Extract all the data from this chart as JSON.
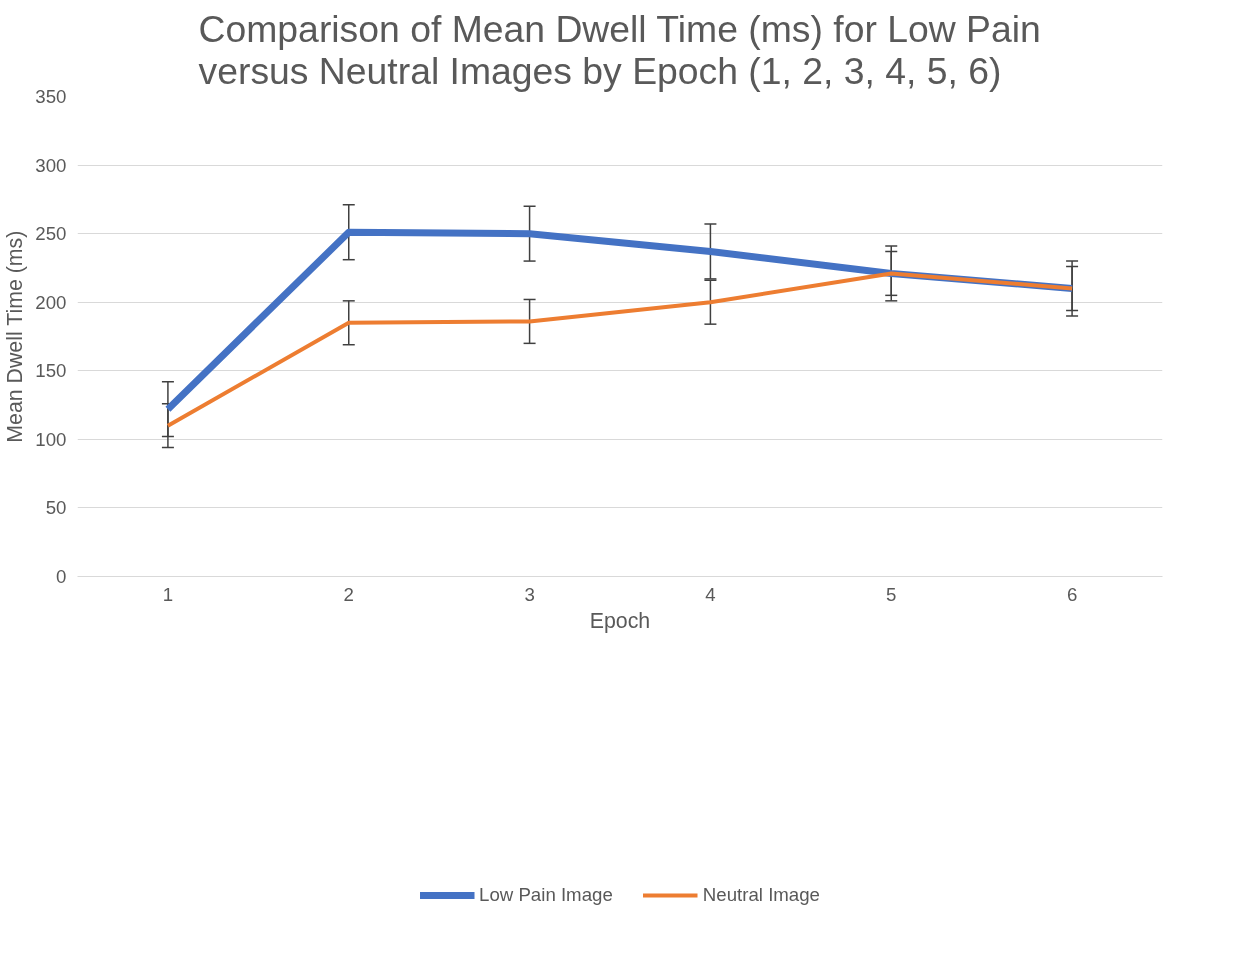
{
  "chart_data": {
    "type": "line",
    "title": "Comparison of Mean Dwell Time (ms) for Low Pain versus Neutral Images by Epoch (1, 2, 3, 4, 5, 6)",
    "xlabel": "Epoch",
    "ylabel": "Mean Dwell Time (ms)",
    "categories": [
      "1",
      "2",
      "3",
      "4",
      "5",
      "6"
    ],
    "series": [
      {
        "name": "Low Pain Image",
        "color": "#4472c4",
        "values": [
          122,
          251,
          250,
          237,
          221,
          210
        ],
        "errors": [
          20,
          20,
          20,
          20,
          20,
          20
        ]
      },
      {
        "name": "Neutral Image",
        "color": "#ed7d31",
        "values": [
          110,
          185,
          186,
          200,
          221,
          210
        ],
        "errors": [
          16,
          16,
          16,
          16,
          16,
          16
        ]
      }
    ],
    "ylim": [
      0,
      350
    ],
    "yticks": [
      0,
      50,
      100,
      150,
      200,
      250,
      300,
      350
    ],
    "grid": "y",
    "legend": "bottom",
    "marker": "none",
    "line_style": "solid"
  }
}
